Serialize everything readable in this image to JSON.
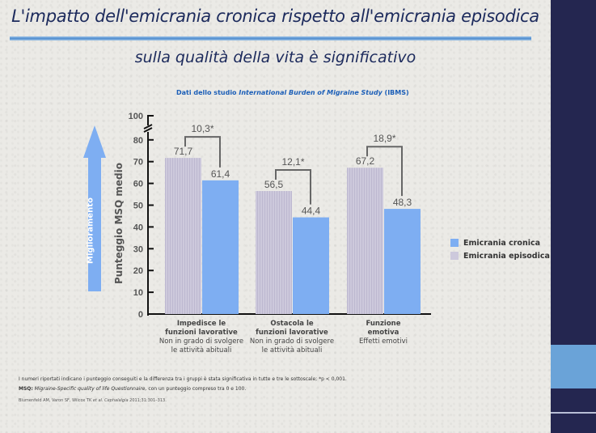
{
  "title_line1": "L'impatto dell'emicrania cronica rispetto all'emicrania episodica",
  "title_line2": "sulla qualità della vita è significativo",
  "subtitle": {
    "prefix": "Dati dello studio ",
    "study_name": "International Burden of Migraine Study",
    "suffix": " (IBMS)"
  },
  "arrow_label": "Miglioramento",
  "colors": {
    "cronica": "#7eaef2",
    "episodica": "#c8c4d8",
    "title": "#1c2a5c",
    "sidebar": "#242650",
    "sidebar_accent": "#6aa3d8"
  },
  "chart_data": {
    "type": "bar",
    "ylabel": "Punteggio MSQ medio",
    "ylim": [
      0,
      100
    ],
    "axis_break": "between 80 and 100",
    "yticks": [
      0,
      10,
      20,
      30,
      40,
      50,
      60,
      70,
      80,
      100
    ],
    "categories": [
      {
        "title1": "Impedisce le",
        "title2": "funzioni lavorative",
        "sub1": "Non in grado di svolgere",
        "sub2": "le attività abituali"
      },
      {
        "title1": "Ostacola le",
        "title2": "funzioni lavorative",
        "sub1": "Non in grado di svolgere",
        "sub2": "le attività abituali"
      },
      {
        "title1": "Funzione",
        "title2": "emotiva",
        "sub1": "Effetti emotivi",
        "sub2": ""
      }
    ],
    "series": [
      {
        "name": "Emicrania episodica",
        "values": [
          71.7,
          56.5,
          67.2
        ],
        "labels": [
          "71,7",
          "56,5",
          "67,2"
        ]
      },
      {
        "name": "Emicrania cronica",
        "values": [
          61.4,
          44.4,
          48.3
        ],
        "labels": [
          "61,4",
          "44,4",
          "48,3"
        ]
      }
    ],
    "differences": [
      "10,3*",
      "12,1*",
      "18,9*"
    ],
    "legend": [
      "Emicrania cronica",
      "Emicrania episodica"
    ],
    "legend_position": "right"
  },
  "footnotes": {
    "line1": "I numeri riportati indicano i punteggio conseguiti e la differenza tra i gruppi è stata significativa in tutte e tre le sottoscale; *p < 0,001.",
    "line2_bold": "MSQ:",
    "line2_italic": " Migraine-Specific quality of life Questionnaire,",
    "line2_rest": " con un punteggio compreso tra 0 e 100.",
    "citation_authors": "Blumenfeld AM, Varon SF, Wilcox TK ",
    "citation_etal": "et al.",
    "citation_journal": "  Cephalalgia",
    "citation_ref": "  2011;31:301–313."
  }
}
